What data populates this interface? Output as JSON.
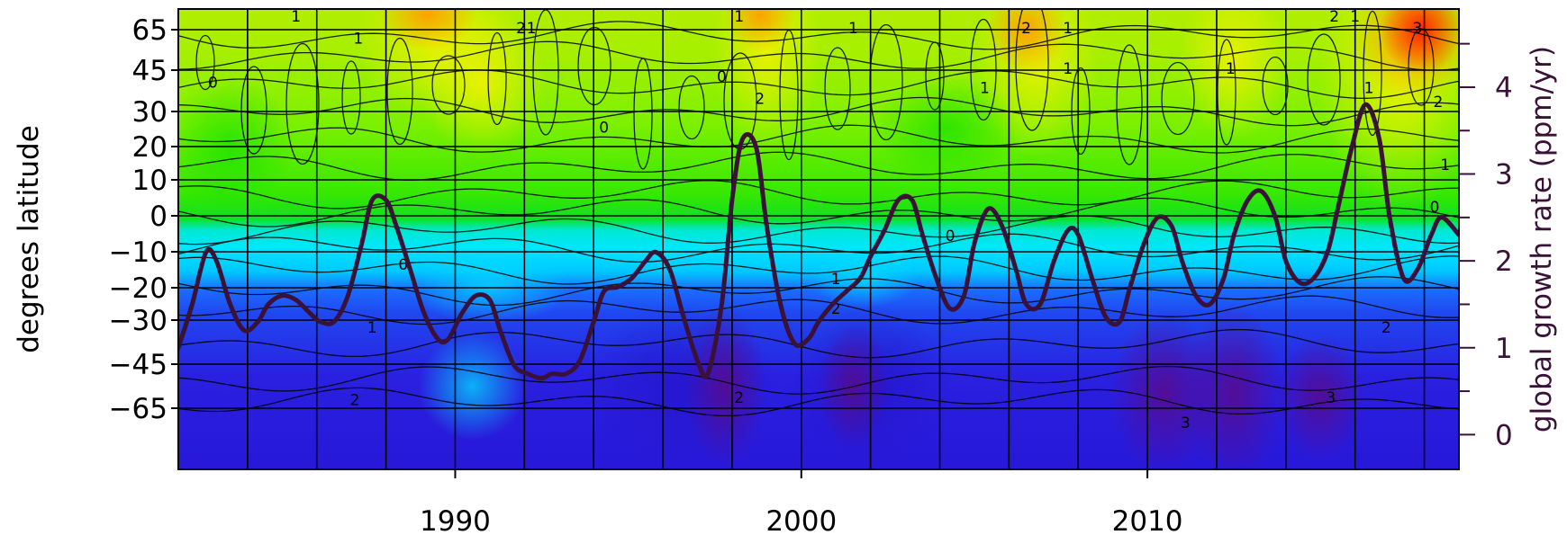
{
  "chart_data": {
    "type": "heatmap",
    "title": "",
    "xlabel": "",
    "ylabel": "degrees latitude",
    "y2label": "global growth rate (ppm/yr)",
    "xlim": [
      1982.0,
      2019.0
    ],
    "x_ticks": [
      1990,
      2000,
      2010
    ],
    "x_minor_ticks": [
      1984,
      1986,
      1988,
      1992,
      1994,
      1996,
      1998,
      2002,
      2004,
      2006,
      2008,
      2012,
      2014,
      2016,
      2018
    ],
    "y_ticks": [
      {
        "value": 65,
        "label": "65"
      },
      {
        "value": 45,
        "label": "45"
      },
      {
        "value": 30,
        "label": "30"
      },
      {
        "value": 20,
        "label": "20"
      },
      {
        "value": 10,
        "label": "10"
      },
      {
        "value": 0,
        "label": "0"
      },
      {
        "value": -10,
        "label": "−10"
      },
      {
        "value": -20,
        "label": "−20"
      },
      {
        "value": -30,
        "label": "−30"
      },
      {
        "value": -45,
        "label": "−45"
      },
      {
        "value": -65,
        "label": "−65"
      }
    ],
    "y2lim": [
      -0.4,
      4.9
    ],
    "y2_ticks": [
      0,
      1,
      2,
      3,
      4
    ],
    "y2_minor_ticks": [
      0.5,
      1.5,
      2.5,
      3.5,
      4.5
    ],
    "grid": true,
    "colorscale": [
      "#5a0a8a",
      "#2a10d6",
      "#1c6aff",
      "#00eaff",
      "#00e84a",
      "#9bf000",
      "#f0f000",
      "#ffa000",
      "#ff2000"
    ],
    "contour_labels": [
      {
        "x": 1985.4,
        "lat": 69,
        "text": "1"
      },
      {
        "x": 1987.2,
        "lat": 60,
        "text": "1"
      },
      {
        "x": 1991.9,
        "lat": 65,
        "text": "2"
      },
      {
        "x": 1992.2,
        "lat": 65,
        "text": "1"
      },
      {
        "x": 1998.2,
        "lat": 69,
        "text": "1"
      },
      {
        "x": 2001.5,
        "lat": 65,
        "text": "1"
      },
      {
        "x": 2006.5,
        "lat": 65,
        "text": "2"
      },
      {
        "x": 2007.7,
        "lat": 65,
        "text": "1"
      },
      {
        "x": 2015.4,
        "lat": 69,
        "text": "2"
      },
      {
        "x": 2016.0,
        "lat": 69,
        "text": "1"
      },
      {
        "x": 2017.8,
        "lat": 65,
        "text": "3"
      },
      {
        "x": 1983.0,
        "lat": 40,
        "text": "0"
      },
      {
        "x": 1994.3,
        "lat": 25,
        "text": "0"
      },
      {
        "x": 1997.7,
        "lat": 42,
        "text": "0"
      },
      {
        "x": 1998.8,
        "lat": 34,
        "text": "2"
      },
      {
        "x": 2005.3,
        "lat": 38,
        "text": "1"
      },
      {
        "x": 2007.7,
        "lat": 45,
        "text": "1"
      },
      {
        "x": 2012.4,
        "lat": 45,
        "text": "1"
      },
      {
        "x": 2016.4,
        "lat": 38,
        "text": "1"
      },
      {
        "x": 2018.4,
        "lat": 33,
        "text": "2"
      },
      {
        "x": 2018.6,
        "lat": 14,
        "text": "1"
      },
      {
        "x": 2018.3,
        "lat": 2,
        "text": "0"
      },
      {
        "x": 2004.3,
        "lat": -6,
        "text": "0"
      },
      {
        "x": 1988.5,
        "lat": -14,
        "text": "0"
      },
      {
        "x": 1987.6,
        "lat": -33,
        "text": "1"
      },
      {
        "x": 2001.0,
        "lat": -18,
        "text": "1"
      },
      {
        "x": 2001.0,
        "lat": -27,
        "text": "2"
      },
      {
        "x": 2016.9,
        "lat": -33,
        "text": "2"
      },
      {
        "x": 1987.1,
        "lat": -62,
        "text": "2"
      },
      {
        "x": 1998.2,
        "lat": -61,
        "text": "2"
      },
      {
        "x": 2011.1,
        "lat": -69,
        "text": "3"
      },
      {
        "x": 2015.3,
        "lat": -61,
        "text": "3"
      }
    ],
    "series": [
      {
        "axis": "right",
        "color": "#3a1238",
        "x": [
          1982.0,
          1982.4,
          1982.8,
          1983.1,
          1983.5,
          1983.9,
          1984.3,
          1984.6,
          1985.0,
          1985.4,
          1985.8,
          1986.1,
          1986.5,
          1986.9,
          1987.3,
          1987.6,
          1988.0,
          1988.3,
          1988.7,
          1989.1,
          1989.5,
          1989.8,
          1990.2,
          1990.6,
          1991.0,
          1991.3,
          1991.7,
          1992.1,
          1992.5,
          1992.8,
          1993.2,
          1993.6,
          1994.0,
          1994.3,
          1994.7,
          1995.1,
          1995.5,
          1995.8,
          1996.2,
          1996.6,
          1997.0,
          1997.3,
          1997.7,
          1998.0,
          1998.3,
          1998.7,
          1999.0,
          1999.4,
          1999.8,
          2000.2,
          2000.5,
          2000.9,
          2001.3,
          2001.7,
          2002.0,
          2002.4,
          2002.8,
          2003.2,
          2003.5,
          2003.9,
          2004.3,
          2004.7,
          2005.0,
          2005.4,
          2005.8,
          2006.2,
          2006.5,
          2006.9,
          2007.3,
          2007.7,
          2008.0,
          2008.4,
          2008.8,
          2009.2,
          2009.5,
          2009.9,
          2010.3,
          2010.7,
          2011.0,
          2011.4,
          2011.8,
          2012.2,
          2012.5,
          2012.9,
          2013.3,
          2013.7,
          2014.0,
          2014.4,
          2014.8,
          2015.2,
          2015.5,
          2015.9,
          2016.3,
          2016.7,
          2017.0,
          2017.4,
          2017.8,
          2018.2,
          2018.5,
          2019.0
        ],
        "y": [
          1.0,
          1.5,
          2.1,
          2.0,
          1.5,
          1.2,
          1.3,
          1.5,
          1.6,
          1.55,
          1.4,
          1.3,
          1.3,
          1.6,
          2.2,
          2.7,
          2.7,
          2.4,
          1.9,
          1.4,
          1.1,
          1.1,
          1.4,
          1.6,
          1.55,
          1.2,
          0.8,
          0.7,
          0.65,
          0.7,
          0.7,
          0.85,
          1.3,
          1.65,
          1.7,
          1.8,
          2.0,
          2.1,
          1.9,
          1.35,
          0.85,
          0.7,
          1.5,
          2.7,
          3.4,
          3.3,
          2.4,
          1.5,
          1.05,
          1.1,
          1.3,
          1.5,
          1.65,
          1.8,
          2.05,
          2.35,
          2.7,
          2.7,
          2.3,
          1.8,
          1.45,
          1.6,
          2.2,
          2.6,
          2.4,
          1.9,
          1.5,
          1.5,
          2.0,
          2.35,
          2.3,
          1.8,
          1.35,
          1.3,
          1.7,
          2.2,
          2.5,
          2.4,
          2.0,
          1.6,
          1.5,
          1.8,
          2.3,
          2.7,
          2.8,
          2.5,
          2.0,
          1.75,
          1.8,
          2.1,
          2.6,
          3.3,
          3.8,
          3.4,
          2.5,
          1.8,
          1.9,
          2.3,
          2.5,
          2.3
        ]
      }
    ]
  }
}
